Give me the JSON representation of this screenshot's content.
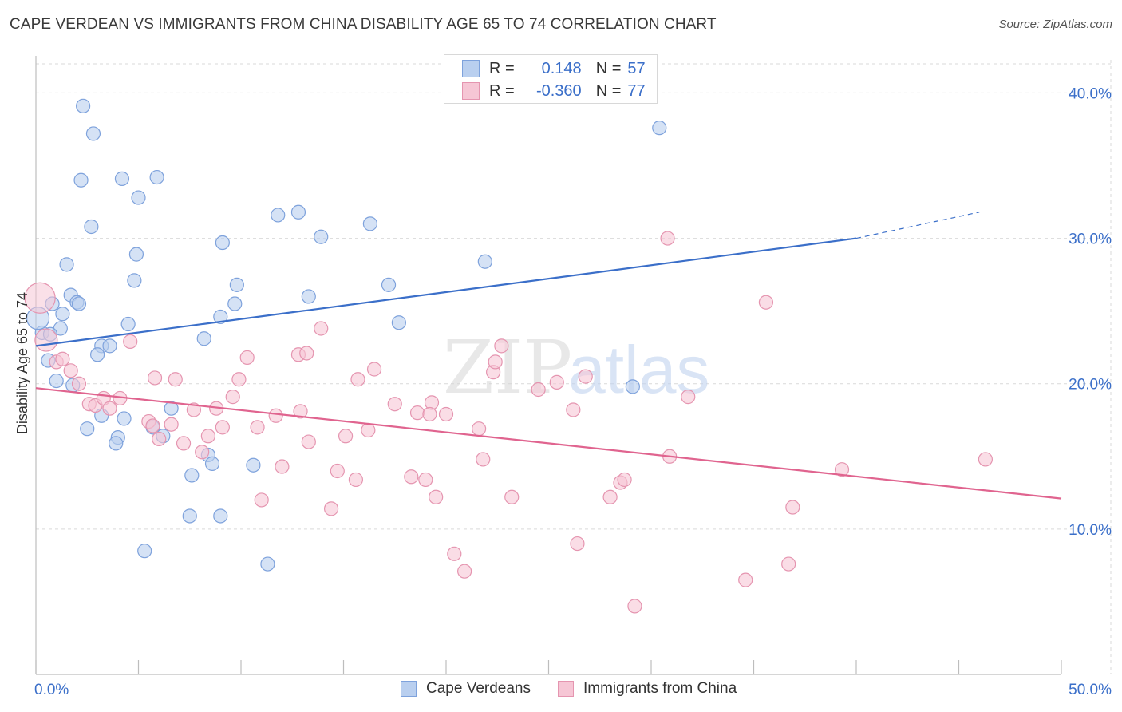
{
  "title": "CAPE VERDEAN VS IMMIGRANTS FROM CHINA DISABILITY AGE 65 TO 74 CORRELATION CHART",
  "source": "Source: ZipAtlas.com",
  "watermark": {
    "zip": "ZIP",
    "atlas": "atlas"
  },
  "colors": {
    "blue": "#3b6fc9",
    "blue_fill": "#b9cfef",
    "pink": "#e0648f",
    "pink_fill": "#f6c6d5",
    "grid": "#d9d9d9",
    "axis_text": "#3b6fc9"
  },
  "legend": {
    "r_label": "R =",
    "n_label": "N =",
    "series": [
      {
        "r": "0.148",
        "n": "57"
      },
      {
        "r": "-0.360",
        "n": "77"
      }
    ]
  },
  "chart_data": {
    "type": "scatter",
    "title": "CAPE VERDEAN VS IMMIGRANTS FROM CHINA DISABILITY AGE 65 TO 74 CORRELATION CHART",
    "ylabel": "Disability Age 65 to 74",
    "xlabel": "",
    "xlim": [
      0,
      50
    ],
    "ylim": [
      0,
      42
    ],
    "x_tick_labels": [
      "0.0%",
      "50.0%"
    ],
    "y_ticks": [
      10,
      20,
      30,
      40
    ],
    "y_tick_labels": [
      "10.0%",
      "20.0%",
      "30.0%",
      "40.0%"
    ],
    "grid": true,
    "legend_position": "top-center",
    "series": [
      {
        "name": "Cape Verdeans",
        "color": "#3b6fc9",
        "trend": {
          "x": [
            0,
            40
          ],
          "y": [
            22.6,
            30.0
          ],
          "dashed_to": [
            46,
            31.8
          ]
        },
        "points": [
          [
            2.3,
            39.1
          ],
          [
            2.8,
            37.2
          ],
          [
            2.2,
            34.0
          ],
          [
            4.2,
            34.1
          ],
          [
            5.9,
            34.2
          ],
          [
            5.0,
            32.8
          ],
          [
            2.7,
            30.8
          ],
          [
            11.8,
            31.6
          ],
          [
            12.8,
            31.8
          ],
          [
            16.3,
            31.0
          ],
          [
            9.1,
            29.7
          ],
          [
            13.9,
            30.1
          ],
          [
            4.9,
            28.9
          ],
          [
            1.5,
            28.2
          ],
          [
            21.9,
            28.4
          ],
          [
            4.8,
            27.1
          ],
          [
            9.8,
            26.8
          ],
          [
            17.2,
            26.8
          ],
          [
            1.7,
            26.1
          ],
          [
            13.3,
            26.0
          ],
          [
            2.0,
            25.6
          ],
          [
            0.8,
            25.5
          ],
          [
            2.1,
            25.5
          ],
          [
            9.7,
            25.5
          ],
          [
            1.3,
            24.8
          ],
          [
            9.0,
            24.6
          ],
          [
            4.5,
            24.1
          ],
          [
            17.7,
            24.2
          ],
          [
            1.2,
            23.8
          ],
          [
            0.3,
            23.5
          ],
          [
            0.7,
            23.4
          ],
          [
            8.2,
            23.1
          ],
          [
            3.2,
            22.6
          ],
          [
            3.6,
            22.6
          ],
          [
            3.0,
            22.0
          ],
          [
            0.6,
            21.6
          ],
          [
            1.0,
            20.2
          ],
          [
            1.8,
            19.9
          ],
          [
            29.1,
            19.8
          ],
          [
            6.6,
            18.3
          ],
          [
            3.2,
            17.8
          ],
          [
            4.3,
            17.6
          ],
          [
            2.5,
            16.9
          ],
          [
            5.7,
            17.0
          ],
          [
            4.0,
            16.3
          ],
          [
            6.2,
            16.4
          ],
          [
            3.9,
            15.9
          ],
          [
            8.4,
            15.1
          ],
          [
            8.6,
            14.5
          ],
          [
            10.6,
            14.4
          ],
          [
            7.6,
            13.7
          ],
          [
            7.5,
            10.9
          ],
          [
            9.0,
            10.9
          ],
          [
            5.3,
            8.5
          ],
          [
            11.3,
            7.6
          ],
          [
            30.4,
            37.6
          ],
          [
            0.1,
            24.5
          ]
        ]
      },
      {
        "name": "Immigrants from China",
        "color": "#e0648f",
        "trend": {
          "x": [
            0,
            50
          ],
          "y": [
            19.7,
            12.1
          ]
        },
        "points": [
          [
            0.2,
            25.9
          ],
          [
            0.5,
            23.0
          ],
          [
            1.0,
            21.5
          ],
          [
            1.3,
            21.7
          ],
          [
            1.7,
            20.9
          ],
          [
            2.1,
            20.0
          ],
          [
            2.6,
            18.6
          ],
          [
            2.9,
            18.5
          ],
          [
            3.3,
            19.0
          ],
          [
            3.6,
            18.3
          ],
          [
            4.1,
            19.0
          ],
          [
            4.6,
            22.9
          ],
          [
            5.5,
            17.4
          ],
          [
            5.7,
            17.1
          ],
          [
            6.0,
            16.2
          ],
          [
            6.6,
            17.2
          ],
          [
            5.8,
            20.4
          ],
          [
            6.8,
            20.3
          ],
          [
            7.2,
            15.9
          ],
          [
            7.7,
            18.2
          ],
          [
            8.1,
            15.3
          ],
          [
            8.4,
            16.4
          ],
          [
            8.8,
            18.3
          ],
          [
            9.1,
            17.0
          ],
          [
            9.6,
            19.1
          ],
          [
            9.9,
            20.3
          ],
          [
            10.3,
            21.8
          ],
          [
            10.8,
            17.0
          ],
          [
            11.0,
            12.0
          ],
          [
            11.7,
            17.8
          ],
          [
            12.0,
            14.3
          ],
          [
            12.8,
            22.0
          ],
          [
            12.9,
            18.1
          ],
          [
            13.2,
            22.1
          ],
          [
            13.3,
            16.0
          ],
          [
            13.9,
            23.8
          ],
          [
            14.4,
            11.4
          ],
          [
            14.7,
            14.0
          ],
          [
            15.1,
            16.4
          ],
          [
            15.6,
            13.4
          ],
          [
            15.7,
            20.3
          ],
          [
            16.2,
            16.8
          ],
          [
            16.5,
            21.0
          ],
          [
            17.5,
            18.6
          ],
          [
            18.3,
            13.6
          ],
          [
            18.6,
            18.0
          ],
          [
            19.0,
            13.4
          ],
          [
            19.3,
            18.7
          ],
          [
            19.5,
            12.2
          ],
          [
            20.0,
            17.9
          ],
          [
            20.4,
            8.3
          ],
          [
            20.9,
            7.1
          ],
          [
            21.6,
            16.9
          ],
          [
            21.8,
            14.8
          ],
          [
            22.3,
            20.8
          ],
          [
            22.7,
            22.6
          ],
          [
            22.4,
            21.5
          ],
          [
            23.2,
            12.2
          ],
          [
            24.5,
            19.6
          ],
          [
            25.4,
            20.1
          ],
          [
            26.2,
            18.2
          ],
          [
            26.4,
            9.0
          ],
          [
            26.8,
            20.5
          ],
          [
            28.0,
            12.2
          ],
          [
            28.5,
            13.2
          ],
          [
            28.7,
            13.4
          ],
          [
            29.2,
            4.7
          ],
          [
            30.8,
            30.0
          ],
          [
            30.9,
            15.0
          ],
          [
            31.8,
            19.1
          ],
          [
            34.6,
            6.5
          ],
          [
            35.6,
            25.6
          ],
          [
            36.7,
            7.6
          ],
          [
            36.9,
            11.5
          ],
          [
            39.3,
            14.1
          ],
          [
            46.3,
            14.8
          ],
          [
            19.2,
            17.9
          ]
        ]
      }
    ]
  }
}
